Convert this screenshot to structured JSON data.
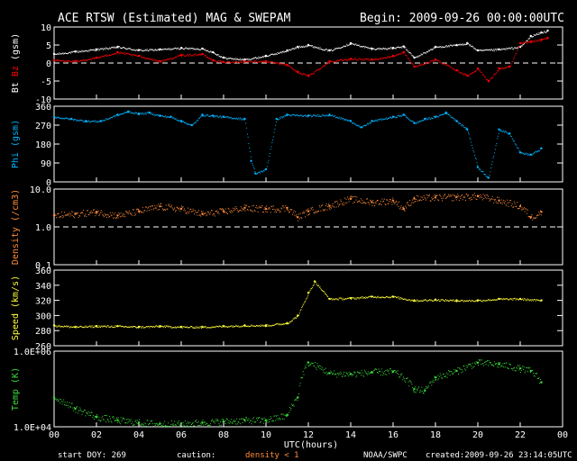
{
  "header": {
    "title": "ACE RTSW (Estimated) MAG & SWEPAM",
    "begin": "Begin: 2009-09-26 00:00:00UTC"
  },
  "footer": {
    "start_doy": "start DOY: 269",
    "caution": "caution:",
    "density_note": "density < 1",
    "source": "NOAA/SWPC",
    "created": "created:2009-09-26 23:14:05UTC"
  },
  "colors": {
    "bg": "#000000",
    "axis": "#ffffff",
    "bt": "#ffffff",
    "bz": "#ff0000",
    "phi": "#00b4ff",
    "density": "#ff8c3a",
    "speed": "#ffff3a",
    "temp": "#3adc3a",
    "caution": "#ff8c3a"
  },
  "chart_data": {
    "type": "scatter",
    "x_axis": {
      "label": "UTC(hours)",
      "range": [
        0,
        24
      ],
      "ticks": [
        "00",
        "02",
        "04",
        "06",
        "08",
        "10",
        "12",
        "14",
        "16",
        "18",
        "20",
        "22",
        "00"
      ]
    },
    "panels": [
      {
        "id": "mag",
        "ylabel_parts": [
          "Bt",
          "Bz",
          "(gsm)"
        ],
        "ylim": [
          -10,
          10
        ],
        "yticks": [
          "10",
          "5",
          "0",
          "-5",
          "-10"
        ],
        "dashed_at": 0,
        "series": [
          {
            "name": "Bt",
            "color": "#ffffff",
            "x": [
              0,
              1,
              2,
              3,
              4,
              5,
              6,
              7,
              7.5,
              8,
              9,
              10,
              11,
              11.5,
              12,
              13,
              14,
              15,
              16,
              16.5,
              17,
              18,
              19,
              19.5,
              20,
              21,
              22,
              22.5,
              23,
              23.3
            ],
            "y": [
              2.5,
              3.2,
              3.8,
              4.5,
              3.6,
              3.8,
              4.2,
              4.0,
              3.0,
              1.5,
              1.0,
              2.0,
              3.5,
              4.5,
              5.0,
              3.5,
              5.5,
              4.0,
              4.2,
              4.6,
              1.5,
              4.5,
              5.0,
              5.5,
              3.5,
              3.8,
              4.5,
              7.5,
              8.5,
              9.0
            ]
          },
          {
            "name": "Bz",
            "color": "#ff0000",
            "x": [
              0,
              1,
              2,
              3,
              4,
              5,
              6,
              7,
              7.5,
              8,
              9,
              10,
              11,
              11.5,
              12,
              13,
              14,
              15,
              16,
              16.5,
              17,
              18,
              19,
              19.5,
              20,
              20.5,
              21,
              21.5,
              22,
              22.5,
              23,
              23.3
            ],
            "y": [
              0.8,
              0.5,
              1.5,
              3.0,
              2.0,
              0.5,
              2.2,
              2.5,
              0.8,
              0.3,
              0.5,
              0.5,
              -0.5,
              -2.5,
              -3.5,
              0.5,
              1.2,
              1.0,
              2.0,
              3.0,
              -1.0,
              1.0,
              -2.0,
              -3.5,
              -1.5,
              -5.0,
              -1.5,
              -1.0,
              5.5,
              6.0,
              6.5,
              7.0
            ]
          }
        ]
      },
      {
        "id": "phi",
        "ylabel_parts": [
          "Phi (gsm)"
        ],
        "ylim": [
          0,
          360
        ],
        "yticks": [
          "360",
          "270",
          "180",
          "90",
          "0"
        ],
        "series": [
          {
            "name": "Phi",
            "color": "#00b4ff",
            "x": [
              0,
              0.8,
              1.5,
              2.2,
              3,
              3.5,
              4,
              4.5,
              5,
              5.5,
              6,
              6.5,
              7,
              7.5,
              8,
              9,
              9.3,
              9.5,
              10,
              10.5,
              11,
              12,
              13,
              14,
              14.5,
              15,
              16,
              16.5,
              17,
              17.5,
              18,
              18.5,
              19,
              19.5,
              20,
              20.5,
              21,
              21.5,
              22,
              22.5,
              23
            ],
            "y": [
              310,
              300,
              290,
              290,
              320,
              335,
              325,
              330,
              315,
              310,
              290,
              270,
              320,
              315,
              310,
              300,
              100,
              40,
              60,
              300,
              320,
              315,
              320,
              290,
              260,
              290,
              310,
              320,
              280,
              300,
              310,
              330,
              290,
              250,
              70,
              20,
              250,
              230,
              140,
              130,
              160
            ]
          }
        ]
      },
      {
        "id": "density",
        "ylabel_parts": [
          "Density (/cm3)"
        ],
        "scale": "log",
        "ylim": [
          0.1,
          10
        ],
        "yticks": [
          "10.0",
          "1.0",
          "0.1"
        ],
        "dashed_at": 1.0,
        "series": [
          {
            "name": "Density",
            "color": "#ff8c3a",
            "x": [
              0,
              1,
              2,
              3,
              4,
              5,
              6,
              7,
              8,
              9,
              10,
              11,
              11.5,
              12,
              13,
              14,
              15,
              16,
              16.5,
              17,
              18,
              19,
              20,
              21,
              22,
              22.5,
              23
            ],
            "y": [
              2.0,
              2.2,
              2.5,
              2.0,
              2.6,
              3.5,
              3.0,
              2.2,
              2.6,
              3.2,
              3.0,
              3.2,
              1.8,
              2.6,
              3.6,
              5.5,
              4.5,
              5.0,
              3.0,
              5.6,
              6.0,
              6.2,
              6.5,
              5.0,
              3.5,
              1.8,
              2.5
            ]
          }
        ]
      },
      {
        "id": "speed",
        "ylabel_parts": [
          "Speed (km/s)"
        ],
        "ylim": [
          260,
          360
        ],
        "yticks": [
          "360",
          "340",
          "320",
          "300",
          "280",
          "260"
        ],
        "series": [
          {
            "name": "Speed",
            "color": "#ffff3a",
            "x": [
              0,
              1,
              2,
              3,
              4,
              5,
              6,
              7,
              8,
              9,
              10,
              11,
              11.5,
              12,
              12.3,
              13,
              14,
              15,
              16,
              17,
              18,
              19,
              20,
              21,
              22,
              23
            ],
            "y": [
              287,
              285,
              286,
              286,
              285,
              286,
              285,
              285,
              286,
              287,
              287,
              290,
              300,
              330,
              345,
              322,
              323,
              325,
              325,
              320,
              321,
              320,
              320,
              322,
              322,
              320
            ]
          }
        ]
      },
      {
        "id": "temp",
        "ylabel_parts": [
          "Temp (K)"
        ],
        "scale": "log",
        "ylim": [
          10000,
          1000000
        ],
        "yticks": [
          "1.0E+06",
          "1.0E+04"
        ],
        "series": [
          {
            "name": "Temp",
            "color": "#3adc3a",
            "x": [
              0,
              1,
              2,
              3,
              4,
              5,
              6,
              7,
              8,
              9,
              10,
              11,
              11.5,
              12,
              13,
              14,
              15,
              16,
              17,
              17.5,
              18,
              19,
              20,
              21,
              22,
              22.5,
              23
            ],
            "y": [
              60000,
              30000,
              18000,
              15000,
              13000,
              12000,
              12000,
              13000,
              14000,
              15000,
              15000,
              20000,
              60000,
              500000,
              260000,
              250000,
              280000,
              290000,
              100000,
              90000,
              200000,
              300000,
              500000,
              450000,
              350000,
              300000,
              150000
            ]
          }
        ]
      }
    ]
  }
}
